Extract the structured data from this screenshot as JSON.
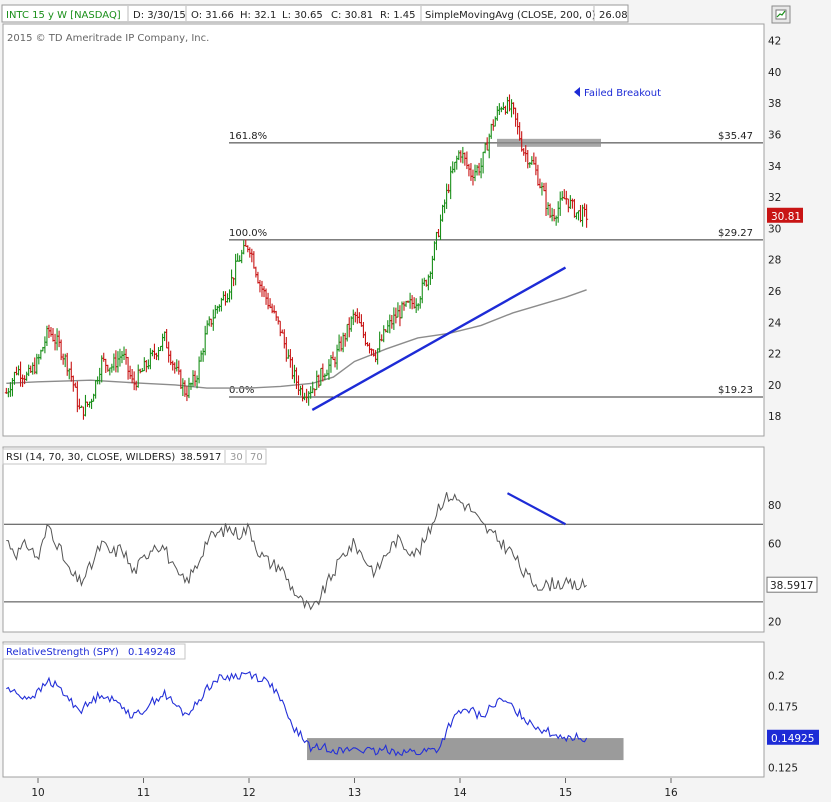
{
  "header": {
    "symbol": "INTC 15 y W [NASDAQ]",
    "date": "D: 3/30/15",
    "open": "O: 31.66",
    "high": "H: 32.1",
    "low": "L: 30.65",
    "close": "C: 30.81",
    "range": "R: 1.45",
    "sma_label": "SimpleMovingAvg (CLOSE, 200, 0)",
    "sma_value": "26.08"
  },
  "copyright": "2015 © TD Ameritrade IP Company, Inc.",
  "colors": {
    "up_bar": "#1a8f1a",
    "down_bar": "#c81414",
    "trendline": "#1d2bd6",
    "sma": "#8c8c8c",
    "rs_line": "#2430d8",
    "price_label": "#c81414",
    "rs_label": "#1d2bd6"
  },
  "chart_data": [
    {
      "type": "line",
      "panel": "price",
      "ylim": [
        16.8,
        43
      ],
      "y_ticks": [
        18,
        20,
        22,
        24,
        26,
        28,
        30,
        32,
        34,
        36,
        38,
        40,
        42
      ],
      "x_ticks": [
        "10",
        "11",
        "12",
        "13",
        "14",
        "15",
        "16"
      ],
      "series": [
        {
          "name": "INTC",
          "x": [
            9.7,
            9.8,
            9.9,
            10.0,
            10.1,
            10.2,
            10.3,
            10.4,
            10.5,
            10.6,
            10.7,
            10.8,
            10.9,
            11.0,
            11.1,
            11.2,
            11.3,
            11.4,
            11.5,
            11.6,
            11.7,
            11.8,
            11.9,
            12.0,
            12.1,
            12.2,
            12.3,
            12.4,
            12.5,
            12.6,
            12.7,
            12.8,
            12.9,
            13.0,
            13.1,
            13.2,
            13.3,
            13.4,
            13.5,
            13.6,
            13.7,
            13.8,
            13.9,
            14.0,
            14.1,
            14.2,
            14.3,
            14.4,
            14.5,
            14.6,
            14.7,
            14.8,
            14.85,
            14.9,
            14.95,
            15.0,
            15.05,
            15.1,
            15.15,
            15.2
          ],
          "values": [
            19.5,
            21.0,
            20.5,
            21.5,
            23.5,
            22.5,
            21.0,
            18.2,
            19.0,
            21.5,
            21.2,
            22.0,
            20.0,
            21.0,
            22.0,
            23.0,
            21.0,
            19.5,
            20.5,
            23.5,
            25.0,
            26.0,
            28.0,
            29.0,
            26.5,
            25.0,
            23.5,
            21.0,
            19.5,
            19.8,
            20.8,
            21.5,
            23.0,
            24.5,
            23.0,
            22.0,
            23.5,
            24.5,
            25.0,
            25.5,
            27.0,
            30.0,
            33.0,
            35.0,
            33.5,
            34.0,
            36.5,
            38.0,
            37.5,
            35.0,
            34.0,
            32.0,
            30.81,
            31.0,
            31.5,
            32.0,
            31.5,
            31.0,
            30.9,
            30.81
          ]
        },
        {
          "name": "SimpleMovingAvg (CLOSE, 200, 0)",
          "x": [
            9.7,
            10.0,
            10.5,
            11.0,
            11.3,
            11.6,
            12.0,
            12.3,
            12.6,
            12.8,
            13.0,
            13.3,
            13.6,
            13.9,
            14.2,
            14.5,
            14.8,
            15.0,
            15.2
          ],
          "values": [
            20.1,
            20.2,
            20.3,
            20.1,
            20.0,
            19.8,
            19.8,
            19.9,
            20.1,
            20.5,
            21.5,
            22.3,
            23.0,
            23.3,
            23.8,
            24.6,
            25.2,
            25.6,
            26.08
          ]
        }
      ],
      "fib_levels": [
        {
          "label": "161.8%",
          "price": "$35.47",
          "value": 35.47
        },
        {
          "label": "100.0%",
          "price": "$29.27",
          "value": 29.27
        },
        {
          "label": "0.0%",
          "price": "$19.23",
          "value": 19.23
        }
      ],
      "trendline": {
        "x": [
          12.6,
          15.0
        ],
        "values": [
          18.4,
          27.5
        ]
      },
      "annotation": "Failed Breakout",
      "last_price_label": "30.81"
    },
    {
      "type": "line",
      "panel": "rsi",
      "title": "RSI (14, 70, 30, CLOSE, WILDERS)",
      "value_label": "38.5917",
      "levels": [
        "30",
        "70"
      ],
      "ylim": [
        15,
        100
      ],
      "y_ticks": [
        20,
        40,
        60,
        80
      ],
      "series": [
        {
          "name": "RSI",
          "x": [
            9.7,
            9.8,
            9.9,
            10.0,
            10.1,
            10.2,
            10.3,
            10.4,
            10.5,
            10.6,
            10.7,
            10.8,
            10.9,
            11.0,
            11.1,
            11.2,
            11.3,
            11.4,
            11.5,
            11.6,
            11.7,
            11.8,
            11.9,
            12.0,
            12.1,
            12.2,
            12.3,
            12.4,
            12.5,
            12.6,
            12.7,
            12.8,
            12.9,
            13.0,
            13.1,
            13.2,
            13.3,
            13.4,
            13.5,
            13.6,
            13.7,
            13.8,
            13.9,
            14.0,
            14.1,
            14.2,
            14.3,
            14.4,
            14.5,
            14.6,
            14.7,
            14.8,
            14.9,
            15.0,
            15.1,
            15.2
          ],
          "values": [
            62,
            55,
            60,
            52,
            70,
            58,
            45,
            40,
            48,
            60,
            55,
            58,
            45,
            52,
            60,
            58,
            45,
            40,
            48,
            62,
            65,
            68,
            65,
            68,
            55,
            50,
            48,
            38,
            30,
            25,
            35,
            45,
            55,
            60,
            52,
            45,
            55,
            62,
            58,
            55,
            65,
            80,
            85,
            82,
            78,
            70,
            65,
            60,
            55,
            45,
            40,
            38,
            40,
            39,
            38,
            38.59
          ]
        }
      ],
      "divergence_line": {
        "x": [
          14.45,
          15.0
        ],
        "values": [
          86,
          70
        ]
      }
    },
    {
      "type": "line",
      "panel": "relative_strength",
      "title": "RelativeStrength (SPY)",
      "value_label": "0.149248",
      "last_value_label": "0.14925",
      "ylim": [
        0.118,
        0.212
      ],
      "y_ticks": [
        "0.125",
        "0.15",
        "0.175",
        "0.2"
      ],
      "series": [
        {
          "name": "RelativeStrength (SPY)",
          "x": [
            9.7,
            9.8,
            9.9,
            10.0,
            10.1,
            10.2,
            10.3,
            10.4,
            10.5,
            10.6,
            10.7,
            10.8,
            10.9,
            11.0,
            11.1,
            11.2,
            11.3,
            11.4,
            11.5,
            11.6,
            11.7,
            11.8,
            11.9,
            12.0,
            12.1,
            12.2,
            12.3,
            12.4,
            12.5,
            12.6,
            12.7,
            12.8,
            12.9,
            13.0,
            13.1,
            13.2,
            13.3,
            13.4,
            13.5,
            13.6,
            13.7,
            13.8,
            13.9,
            14.0,
            14.1,
            14.2,
            14.3,
            14.4,
            14.5,
            14.6,
            14.7,
            14.8,
            14.9,
            15.0,
            15.1,
            15.2
          ],
          "values": [
            0.19,
            0.185,
            0.182,
            0.186,
            0.196,
            0.19,
            0.18,
            0.172,
            0.178,
            0.186,
            0.18,
            0.176,
            0.166,
            0.172,
            0.18,
            0.185,
            0.176,
            0.168,
            0.176,
            0.19,
            0.197,
            0.199,
            0.2,
            0.202,
            0.198,
            0.194,
            0.18,
            0.16,
            0.15,
            0.14,
            0.142,
            0.14,
            0.138,
            0.141,
            0.139,
            0.137,
            0.14,
            0.138,
            0.138,
            0.137,
            0.139,
            0.14,
            0.16,
            0.17,
            0.172,
            0.166,
            0.175,
            0.18,
            0.174,
            0.166,
            0.16,
            0.155,
            0.152,
            0.15,
            0.1495,
            0.14925
          ]
        }
      ],
      "highlight_box": {
        "x": [
          12.55,
          15.55
        ],
        "values": [
          0.131,
          0.149
        ]
      }
    }
  ]
}
